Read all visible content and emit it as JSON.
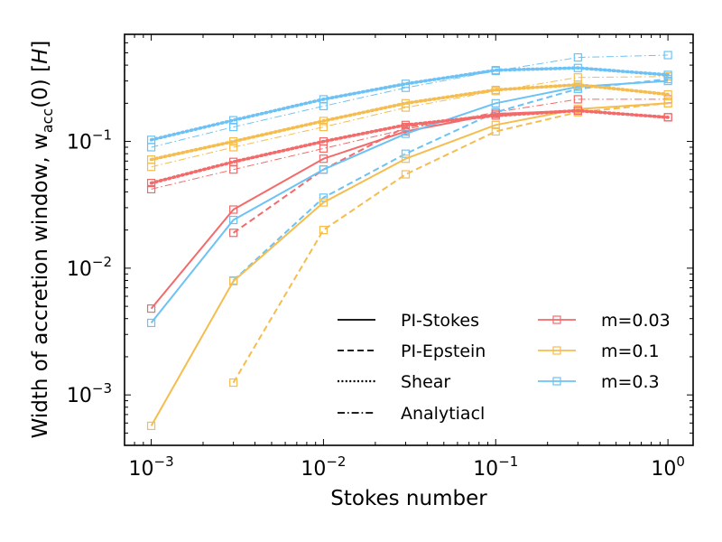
{
  "chart_data": {
    "type": "line",
    "xscale": "log",
    "yscale": "log",
    "xlabel": "Stokes number",
    "ylabel": {
      "prefix": "Width of accretion window, w",
      "subscript": "acc",
      "suffix": "(0) [",
      "unit": "H",
      "close": "]"
    },
    "xlim": [
      0.0007,
      1.4
    ],
    "ylim": [
      0.0004,
      0.7
    ],
    "x_ticks": [
      {
        "value": 0.001,
        "base": "10",
        "exp": "−3"
      },
      {
        "value": 0.01,
        "base": "10",
        "exp": "−2"
      },
      {
        "value": 0.1,
        "base": "10",
        "exp": "−1"
      },
      {
        "value": 1,
        "base": "10",
        "exp": "0"
      }
    ],
    "y_ticks": [
      {
        "value": 0.001,
        "base": "10",
        "exp": "−3"
      },
      {
        "value": 0.01,
        "base": "10",
        "exp": "−2"
      },
      {
        "value": 0.1,
        "base": "10",
        "exp": "−1"
      }
    ],
    "colors": {
      "m=0.03": "#f26a6a",
      "m=0.1": "#f5bd4f",
      "m=0.3": "#6cc2f5"
    },
    "legend_styles": [
      {
        "label": "PI-Stokes",
        "style": "solid"
      },
      {
        "label": "PI-Epstein",
        "style": "dashed"
      },
      {
        "label": "Shear",
        "style": "dotted"
      },
      {
        "label": "Analytiacl",
        "style": "dashdot"
      }
    ],
    "legend_masses": [
      {
        "label": "m=0.03",
        "key": "m=0.03"
      },
      {
        "label": "m=0.1",
        "key": "m=0.1"
      },
      {
        "label": "m=0.3",
        "key": "m=0.3"
      }
    ],
    "legend_position": "lower-right",
    "series": [
      {
        "name": "PI-Stokes m=0.03",
        "mass": "m=0.03",
        "style": "solid",
        "x": [
          0.001,
          0.003,
          0.01,
          0.03,
          0.1,
          0.3,
          1.0
        ],
        "y": [
          0.0048,
          0.029,
          0.073,
          0.12,
          0.165,
          0.175,
          0.155
        ]
      },
      {
        "name": "PI-Stokes m=0.1",
        "mass": "m=0.1",
        "style": "solid",
        "x": [
          0.001,
          0.003,
          0.01,
          0.03,
          0.1,
          0.3,
          1.0
        ],
        "y": [
          0.00057,
          0.0079,
          0.033,
          0.073,
          0.135,
          0.18,
          0.2
        ]
      },
      {
        "name": "PI-Stokes m=0.3",
        "mass": "m=0.3",
        "style": "solid",
        "x": [
          0.001,
          0.003,
          0.01,
          0.03,
          0.1,
          0.3,
          1.0
        ],
        "y": [
          0.0037,
          0.024,
          0.06,
          0.115,
          0.2,
          0.27,
          0.3
        ]
      },
      {
        "name": "PI-Epstein m=0.03",
        "mass": "m=0.03",
        "style": "dashed",
        "x": [
          0.003,
          0.01,
          0.03,
          0.1,
          0.3,
          1.0
        ],
        "y": [
          0.019,
          0.06,
          0.13,
          0.165,
          0.175,
          0.155
        ]
      },
      {
        "name": "PI-Epstein m=0.1",
        "mass": "m=0.1",
        "style": "dashed",
        "x": [
          0.003,
          0.01,
          0.03,
          0.1,
          0.3,
          1.0
        ],
        "y": [
          0.00125,
          0.02,
          0.055,
          0.12,
          0.17,
          0.2
        ]
      },
      {
        "name": "PI-Epstein m=0.3",
        "mass": "m=0.3",
        "style": "dashed",
        "x": [
          0.003,
          0.01,
          0.03,
          0.1,
          0.3,
          1.0
        ],
        "y": [
          0.008,
          0.036,
          0.08,
          0.17,
          0.26,
          0.31
        ]
      },
      {
        "name": "Shear m=0.03",
        "mass": "m=0.03",
        "style": "dotted",
        "x": [
          0.001,
          0.003,
          0.01,
          0.03,
          0.1,
          0.3,
          1.0
        ],
        "y": [
          0.047,
          0.069,
          0.1,
          0.135,
          0.16,
          0.175,
          0.155
        ]
      },
      {
        "name": "Shear m=0.1",
        "mass": "m=0.1",
        "style": "dotted",
        "x": [
          0.001,
          0.003,
          0.01,
          0.03,
          0.1,
          0.3,
          1.0
        ],
        "y": [
          0.072,
          0.1,
          0.145,
          0.2,
          0.255,
          0.28,
          0.235
        ]
      },
      {
        "name": "Shear m=0.3",
        "mass": "m=0.3",
        "style": "dotted",
        "x": [
          0.001,
          0.003,
          0.01,
          0.03,
          0.1,
          0.3,
          1.0
        ],
        "y": [
          0.103,
          0.147,
          0.215,
          0.285,
          0.365,
          0.38,
          0.335
        ]
      },
      {
        "name": "Analytiacl m=0.03",
        "mass": "m=0.03",
        "style": "dashdot",
        "x": [
          0.001,
          0.003,
          0.01,
          0.03,
          0.1,
          0.3,
          1.0
        ],
        "y": [
          0.042,
          0.06,
          0.088,
          0.125,
          0.17,
          0.215,
          0.215
        ]
      },
      {
        "name": "Analytiacl m=0.1",
        "mass": "m=0.1",
        "style": "dashdot",
        "x": [
          0.001,
          0.003,
          0.01,
          0.03,
          0.1,
          0.3,
          1.0
        ],
        "y": [
          0.063,
          0.09,
          0.13,
          0.185,
          0.25,
          0.32,
          0.325
        ]
      },
      {
        "name": "Analytiacl m=0.3",
        "mass": "m=0.3",
        "style": "dashdot",
        "x": [
          0.001,
          0.003,
          0.01,
          0.03,
          0.1,
          0.3,
          1.0
        ],
        "y": [
          0.09,
          0.13,
          0.19,
          0.265,
          0.36,
          0.46,
          0.48
        ]
      }
    ]
  }
}
